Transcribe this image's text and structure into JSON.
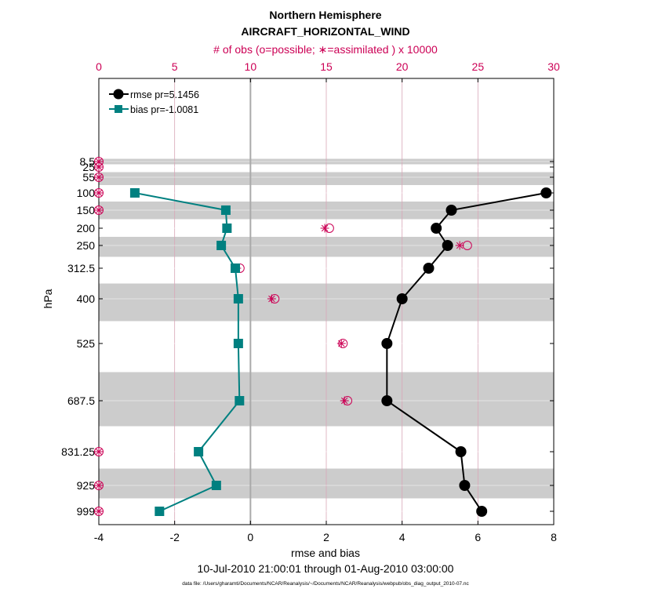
{
  "chart_data": {
    "type": "line",
    "title": "Northern Hemisphere",
    "subtitle": "AIRCRAFT_HORIZONTAL_WIND",
    "top_axis_label": "# of obs (o=possible; ∗=assimilated ) x 10000",
    "xlabel": "rmse and bias",
    "ylabel": "hPa",
    "date_range": "10-Jul-2010 21:00:01 through 01-Aug-2010 03:00:00",
    "footnote": "data file: /Users/gharamti/Documents/NCAR/Reanalysis/~/Documents/NCAR/Reanalysis/webpub/obs_diag_output_2010-07.nc",
    "xlim": [
      -4,
      8
    ],
    "xticks": [
      -4,
      -2,
      0,
      2,
      4,
      6,
      8
    ],
    "top_xlim": [
      0,
      30
    ],
    "top_xticks": [
      0,
      5,
      10,
      15,
      20,
      25,
      30
    ],
    "y_axis": "pressure, increasing downward, irregular level spacing",
    "levels": [
      {
        "label": "8.5",
        "p": 8.5
      },
      {
        "label": "25",
        "p": 25
      },
      {
        "label": "55",
        "p": 55
      },
      {
        "label": "100",
        "p": 100
      },
      {
        "label": "150",
        "p": 150
      },
      {
        "label": "200",
        "p": 200
      },
      {
        "label": "250",
        "p": 250
      },
      {
        "label": "312.5",
        "p": 312.5
      },
      {
        "label": "400",
        "p": 400
      },
      {
        "label": "525",
        "p": 525
      },
      {
        "label": "687.5",
        "p": 687.5
      },
      {
        "label": "831.25",
        "p": 831.25
      },
      {
        "label": "925",
        "p": 925
      },
      {
        "label": "999",
        "p": 999
      }
    ],
    "legend_placement": "top-left",
    "grid": true,
    "series": [
      {
        "name": "rmse pr=5.1456",
        "color": "#000000",
        "marker": "circle",
        "points": [
          {
            "p": 100,
            "x": 7.8
          },
          {
            "p": 150,
            "x": 5.3
          },
          {
            "p": 200,
            "x": 4.9
          },
          {
            "p": 250,
            "x": 5.2
          },
          {
            "p": 312.5,
            "x": 4.7
          },
          {
            "p": 400,
            "x": 4.0
          },
          {
            "p": 525,
            "x": 3.6
          },
          {
            "p": 687.5,
            "x": 3.6
          },
          {
            "p": 831.25,
            "x": 5.55
          },
          {
            "p": 925,
            "x": 5.65
          },
          {
            "p": 999,
            "x": 6.1
          }
        ]
      },
      {
        "name": "bias pr=-1.0081",
        "color": "#008080",
        "marker": "square",
        "points": [
          {
            "p": 100,
            "x": -3.05
          },
          {
            "p": 150,
            "x": -0.65
          },
          {
            "p": 200,
            "x": -0.62
          },
          {
            "p": 250,
            "x": -0.77
          },
          {
            "p": 312.5,
            "x": -0.4
          },
          {
            "p": 400,
            "x": -0.32
          },
          {
            "p": 525,
            "x": -0.32
          },
          {
            "p": 687.5,
            "x": -0.29
          },
          {
            "p": 831.25,
            "x": -1.37
          },
          {
            "p": 925,
            "x": -0.9
          },
          {
            "p": 999,
            "x": -2.4
          }
        ]
      }
    ],
    "obs_counts": {
      "color": "#cc0055",
      "possible_marker": "circle",
      "assimilated_marker": "asterisk",
      "points": [
        {
          "p": 8.5,
          "possible": 0,
          "assimilated": 0
        },
        {
          "p": 25,
          "possible": 0,
          "assimilated": 0
        },
        {
          "p": 55,
          "possible": 0,
          "assimilated": 0
        },
        {
          "p": 100,
          "possible": 0,
          "assimilated": 0
        },
        {
          "p": 150,
          "possible": 0,
          "assimilated": 0
        },
        {
          "p": 200,
          "possible": 15.2,
          "assimilated": 14.9
        },
        {
          "p": 250,
          "possible": 24.3,
          "assimilated": 23.8
        },
        {
          "p": 312.5,
          "possible": 9.3,
          "assimilated": 9.1
        },
        {
          "p": 400,
          "possible": 11.6,
          "assimilated": 11.4
        },
        {
          "p": 525,
          "possible": 16.1,
          "assimilated": 16.0
        },
        {
          "p": 687.5,
          "possible": 16.4,
          "assimilated": 16.2
        },
        {
          "p": 831.25,
          "possible": 0,
          "assimilated": 0
        },
        {
          "p": 925,
          "possible": 0,
          "assimilated": 0
        },
        {
          "p": 999,
          "possible": 0,
          "assimilated": 0
        }
      ]
    }
  }
}
